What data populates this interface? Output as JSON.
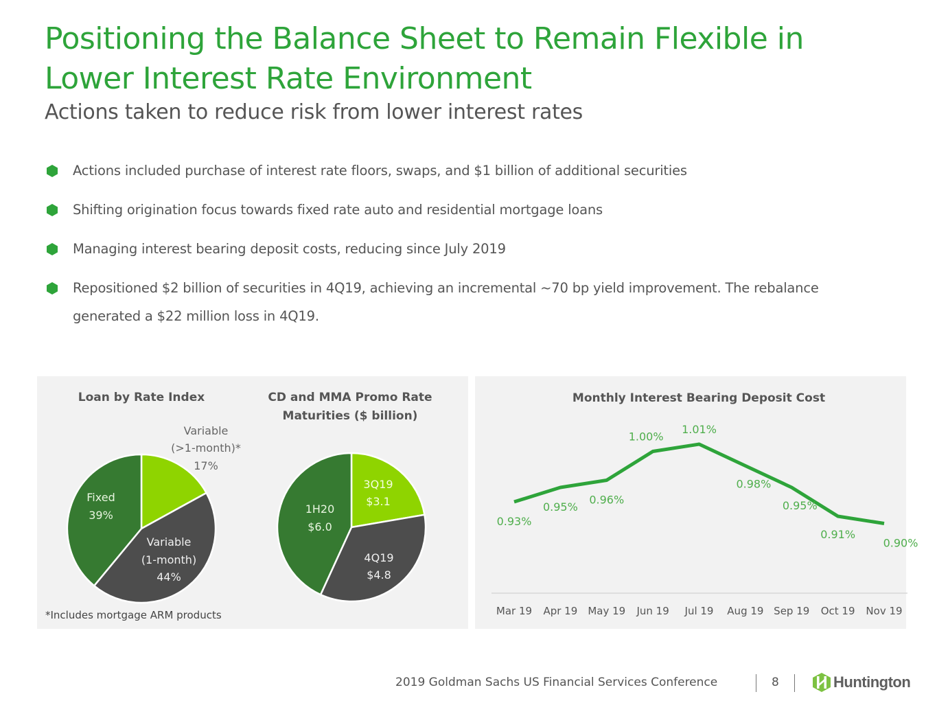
{
  "header": {
    "title_line1": "Positioning the Balance Sheet to Remain Flexible in",
    "title_line2": "Lower Interest Rate Environment",
    "subtitle": "Actions taken to reduce risk from lower interest rates"
  },
  "bullets": [
    {
      "text": "Actions included purchase of interest rate floors, swaps, and $1 billion of additional securities"
    },
    {
      "text": "Shifting origination focus towards fixed rate auto and residential mortgage loans"
    },
    {
      "text": "Managing interest bearing deposit costs, reducing since July 2019"
    },
    {
      "text": "Repositioned $2 billion of securities in 4Q19, achieving an incremental ~70 bp yield improvement.  The rebalance generated a $22 million loss in 4Q19."
    }
  ],
  "colors": {
    "accent_green": "#2ea43a",
    "dark_green": "#367a31",
    "light_green": "#8fd400",
    "dark_gray": "#4d4d4d",
    "text_gray": "#555555",
    "panel_bg": "#f2f2f2"
  },
  "chart_data": [
    {
      "type": "pie",
      "title": "Loan by Rate Index",
      "footnote": "*Includes mortgage ARM products",
      "slices": [
        {
          "label_line1": "Variable",
          "label_line2": "(>1-month)*",
          "value_label": "17%",
          "value": 17,
          "color": "#8fd400"
        },
        {
          "label_line1": "Variable",
          "label_line2": "(1-month)",
          "value_label": "44%",
          "value": 44,
          "color": "#4d4d4d"
        },
        {
          "label_line1": "Fixed",
          "label_line2": "",
          "value_label": "39%",
          "value": 39,
          "color": "#367a31"
        }
      ]
    },
    {
      "type": "pie",
      "title_line1": "CD and MMA Promo Rate",
      "title_line2": "Maturities ($ billion)",
      "slices": [
        {
          "label": "3Q19",
          "value_label": "$3.1",
          "value": 3.1,
          "color": "#8fd400"
        },
        {
          "label": "4Q19",
          "value_label": "$4.8",
          "value": 4.8,
          "color": "#4d4d4d"
        },
        {
          "label": "1H20",
          "value_label": "$6.0",
          "value": 6.0,
          "color": "#367a31"
        }
      ]
    },
    {
      "type": "line",
      "title": "Monthly Interest Bearing Deposit Cost",
      "categories": [
        "Mar 19",
        "Apr 19",
        "May 19",
        "Jun 19",
        "Jul 19",
        "Aug 19",
        "Sep 19",
        "Oct 19",
        "Nov 19"
      ],
      "series": [
        {
          "name": "Interest Bearing Deposit Cost",
          "values": [
            0.93,
            0.95,
            0.96,
            1.0,
            1.01,
            0.98,
            0.95,
            0.91,
            0.9
          ],
          "labels": [
            "0.93%",
            "0.95%",
            "0.96%",
            "1.00%",
            "1.01%",
            "0.98%",
            "0.95%",
            "0.91%",
            "0.90%"
          ],
          "color": "#2ea43a"
        }
      ],
      "ylim": [
        0.85,
        1.05
      ],
      "grid": false,
      "legend": "none"
    }
  ],
  "footer": {
    "conference": "2019 Goldman Sachs US Financial Services Conference",
    "page_number": "8",
    "logo_text": "Huntington"
  }
}
